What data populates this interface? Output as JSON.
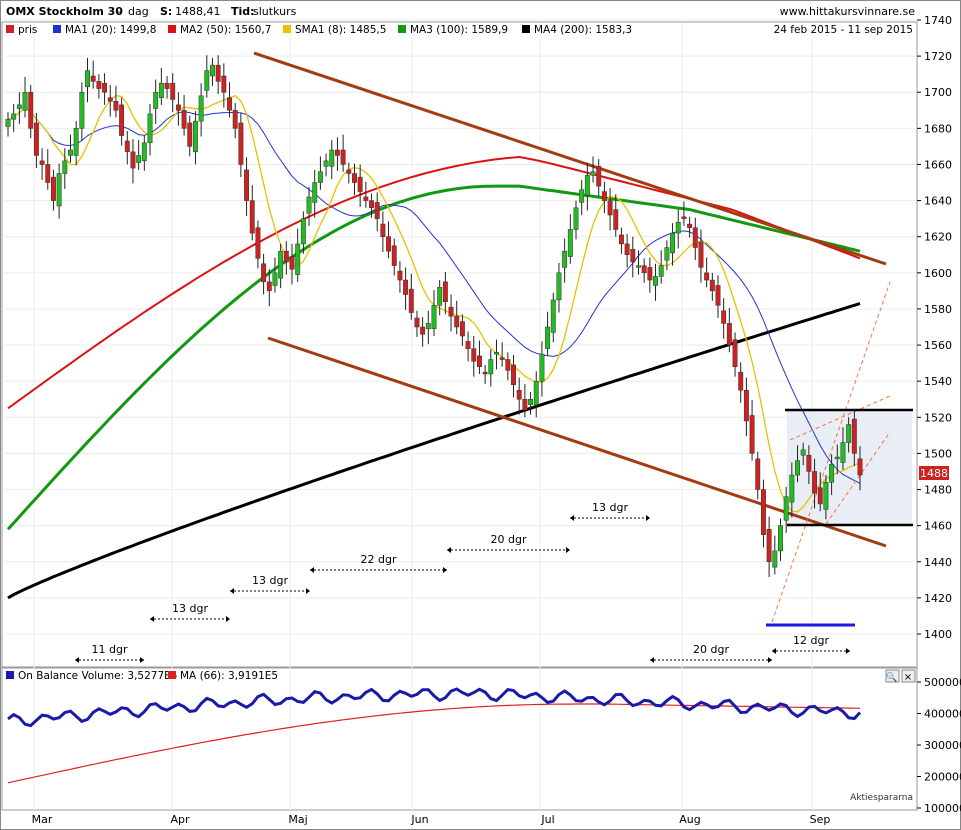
{
  "header": {
    "symbol": "OMX Stockholm 30",
    "interval": "dag",
    "last_label": "S:",
    "last_value": "1488,41",
    "time_label": "Tid:",
    "time_value": "slutkurs",
    "site": "www.hittakursvinnare.se",
    "date_range": "24 feb 2015 - 11 sep 2015",
    "price_tag": "1488"
  },
  "legend": {
    "price": "pris",
    "ma1": "MA1 (20): 1499,8",
    "ma2": "MA2 (50): 1560,7",
    "sma1": "SMA1 (8): 1485,5",
    "ma3": "MA3 (100): 1589,9",
    "ma4": "MA4 (200): 1583,3"
  },
  "lower": {
    "obv": "On Balance Volume: 3,5277E5",
    "ma": "MA (66): 3,9191E5",
    "watermark": "Aktiespararna"
  },
  "colors": {
    "up": "#22bb22",
    "down": "#cc2222",
    "ma20": "#2233cc",
    "ma50": "#dd1111",
    "sma8": "#e6c200",
    "ma100": "#119911",
    "ma200": "#000000",
    "channel": "#a33a10",
    "obv": "#1a1aaa",
    "obv_ma": "#dd2222"
  },
  "chart_data": [
    {
      "type": "candlestick",
      "title": "OMX Stockholm 30",
      "x_months": [
        "Mar",
        "Apr",
        "Maj",
        "Jun",
        "Jul",
        "Aug",
        "Sep"
      ],
      "ylim": [
        1385,
        1745
      ],
      "y_ticks": [
        1400,
        1420,
        1440,
        1460,
        1480,
        1500,
        1520,
        1540,
        1560,
        1580,
        1600,
        1620,
        1640,
        1660,
        1680,
        1700,
        1720,
        1740
      ],
      "close_approx": [
        1685,
        1688,
        1693,
        1700,
        1680,
        1665,
        1660,
        1650,
        1640,
        1655,
        1662,
        1668,
        1680,
        1700,
        1712,
        1706,
        1702,
        1700,
        1695,
        1690,
        1676,
        1667,
        1658,
        1665,
        1672,
        1688,
        1700,
        1705,
        1702,
        1696,
        1690,
        1680,
        1670,
        1684,
        1698,
        1712,
        1715,
        1706,
        1700,
        1690,
        1680,
        1660,
        1640,
        1622,
        1608,
        1595,
        1590,
        1600,
        1612,
        1606,
        1602,
        1616,
        1630,
        1642,
        1650,
        1656,
        1662,
        1668,
        1665,
        1660,
        1655,
        1650,
        1645,
        1640,
        1636,
        1630,
        1620,
        1612,
        1604,
        1596,
        1588,
        1578,
        1570,
        1566,
        1572,
        1582,
        1592,
        1584,
        1576,
        1570,
        1565,
        1558,
        1551,
        1548,
        1544,
        1552,
        1556,
        1552,
        1546,
        1538,
        1530,
        1524,
        1530,
        1540,
        1555,
        1570,
        1585,
        1600,
        1612,
        1624,
        1636,
        1646,
        1654,
        1656,
        1648,
        1640,
        1632,
        1624,
        1616,
        1610,
        1606,
        1604,
        1600,
        1596,
        1598,
        1604,
        1614,
        1622,
        1628,
        1630,
        1625,
        1614,
        1603,
        1596,
        1590,
        1582,
        1572,
        1560,
        1548,
        1535,
        1518,
        1500,
        1480,
        1455,
        1440,
        1446,
        1460,
        1476,
        1488,
        1496,
        1502,
        1490,
        1478,
        1472,
        1484,
        1494,
        1498,
        1506,
        1516,
        1500,
        1488
      ],
      "moving_averages": {
        "MA1 (20)": 1499.8,
        "MA2 (50)": 1560.7,
        "SMA1 (8)": 1485.5,
        "MA3 (100)": 1589.9,
        "MA4 (200)": 1583.3
      },
      "annotations": [
        {
          "text": "11 dgr"
        },
        {
          "text": "13 dgr"
        },
        {
          "text": "13 dgr"
        },
        {
          "text": "22 dgr"
        },
        {
          "text": "20 dgr"
        },
        {
          "text": "13 dgr"
        },
        {
          "text": "20 dgr"
        },
        {
          "text": "12 dgr"
        }
      ]
    },
    {
      "type": "line",
      "title": "On Balance Volume",
      "ylim": [
        100000,
        520000
      ],
      "y_ticks": [
        100000,
        200000,
        300000,
        400000,
        500000
      ],
      "y_tick_labels": [
        "100000",
        "200000",
        "300000",
        "400000",
        "500000"
      ],
      "series": [
        {
          "name": "On Balance Volume: 3,5277E5"
        },
        {
          "name": "MA (66): 3,9191E5"
        }
      ]
    }
  ]
}
